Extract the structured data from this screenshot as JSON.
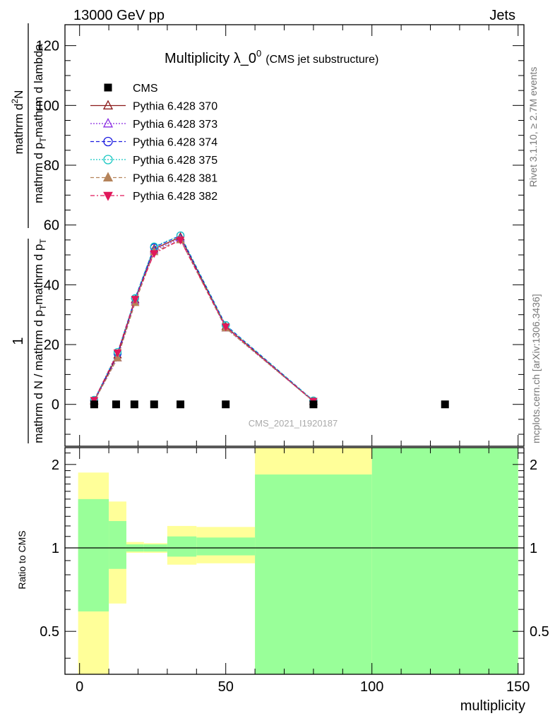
{
  "header": {
    "left": "13000 GeV pp",
    "right": "Jets"
  },
  "title_main": "Multiplicity λ_0",
  "title_sup": "0",
  "title_sub": "(CMS jet substructure)",
  "ylabel_top": {
    "num_a": "1",
    "den_a": "mathrm d N / mathrm d p",
    "den_a_sub": "T",
    "den_a_tail": "mathrm d p",
    "den_a_sub2": "T",
    "num_b": "mathrm d",
    "num_b_sup": "2",
    "num_b_tail": "N",
    "den_b": "mathrm d p",
    "den_b_sub": "T",
    "den_b_tail": "mathrm d lambda"
  },
  "side_right_top": "Rivet 3.1.10, ≥ 2.7M events",
  "side_right_bottom": "mcplots.cern.ch [arXiv:1306.3436]",
  "watermark": "CMS_2021_I1920187",
  "ratio_ylabel": "Ratio to CMS",
  "xlabel": "multiplicity",
  "legend": [
    {
      "label": "CMS",
      "color": "#000000",
      "marker": "square",
      "dash": "none"
    },
    {
      "label": "Pythia 6.428 370",
      "color": "#8b1a1a",
      "marker": "triangle-open",
      "dash": "solid"
    },
    {
      "label": "Pythia 6.428 373",
      "color": "#8a2be2",
      "marker": "triangle-open",
      "dash": "dotted"
    },
    {
      "label": "Pythia 6.428 374",
      "color": "#1a1ae0",
      "marker": "circle-open",
      "dash": "dashed"
    },
    {
      "label": "Pythia 6.428 375",
      "color": "#18c7c2",
      "marker": "circle-open",
      "dash": "dotted"
    },
    {
      "label": "Pythia 6.428 381",
      "color": "#b5835a",
      "marker": "triangle-filled",
      "dash": "dashed"
    },
    {
      "label": "Pythia 6.428 382",
      "color": "#e0185a",
      "marker": "triangle-down-filled",
      "dash": "dashdot"
    }
  ],
  "chart_data": {
    "type": "line",
    "xlim": [
      -5,
      152
    ],
    "ylim_main": [
      -14,
      127
    ],
    "yticks_main": [
      0,
      20,
      40,
      60,
      80,
      100,
      120
    ],
    "ratio_ylim": [
      0.35,
      2.3
    ],
    "ratio_yticks": [
      0.5,
      1,
      2
    ],
    "xticks": [
      0,
      50,
      100,
      150
    ],
    "cms_points": {
      "x": [
        5,
        12.5,
        18.75,
        25.5,
        34.5,
        50,
        80,
        125
      ],
      "y": [
        0,
        0,
        0,
        0,
        0,
        0,
        0,
        0
      ]
    },
    "mc_x": [
      5,
      13,
      19,
      25.5,
      34.5,
      50,
      80
    ],
    "series": [
      {
        "name": "Pythia 6.428 370",
        "values": [
          1.2,
          16.5,
          35.0,
          52.0,
          56.0,
          26.0,
          1.0
        ]
      },
      {
        "name": "Pythia 6.428 373",
        "values": [
          1.0,
          15.5,
          34.5,
          51.5,
          55.5,
          25.5,
          1.0
        ]
      },
      {
        "name": "Pythia 6.428 374",
        "values": [
          1.3,
          17.0,
          35.5,
          52.5,
          56.5,
          26.5,
          1.2
        ]
      },
      {
        "name": "Pythia 6.428 375",
        "values": [
          1.5,
          17.5,
          35.5,
          52.8,
          56.5,
          26.5,
          1.3
        ]
      },
      {
        "name": "Pythia 6.428 381",
        "values": [
          1.0,
          15.5,
          34.0,
          51.0,
          55.0,
          25.5,
          1.0
        ]
      },
      {
        "name": "Pythia 6.428 382",
        "values": [
          1.4,
          17.3,
          35.2,
          50.5,
          55.0,
          26.0,
          1.1
        ]
      }
    ],
    "ratio_bands": [
      {
        "x0": -0.5,
        "x1": 10,
        "yellow": [
          0.35,
          1.87
        ],
        "green": [
          0.59,
          1.5
        ]
      },
      {
        "x0": 10,
        "x1": 16,
        "yellow": [
          0.63,
          1.47
        ],
        "green": [
          0.84,
          1.25
        ]
      },
      {
        "x0": 16,
        "x1": 22,
        "yellow": [
          0.96,
          1.05
        ],
        "green": [
          0.97,
          1.03
        ]
      },
      {
        "x0": 22,
        "x1": 30,
        "yellow": [
          0.96,
          1.04
        ],
        "green": [
          0.97,
          1.03
        ]
      },
      {
        "x0": 30,
        "x1": 40,
        "yellow": [
          0.87,
          1.2
        ],
        "green": [
          0.93,
          1.1
        ]
      },
      {
        "x0": 40,
        "x1": 60,
        "yellow": [
          0.88,
          1.19
        ],
        "green": [
          0.94,
          1.09
        ]
      },
      {
        "x0": 60,
        "x1": 100,
        "yellow": [
          0.35,
          2.3
        ],
        "green": [
          0.35,
          1.84
        ]
      },
      {
        "x0": 100,
        "x1": 150,
        "yellow": [
          0.35,
          2.3
        ],
        "green": [
          0.35,
          2.3
        ]
      }
    ]
  }
}
